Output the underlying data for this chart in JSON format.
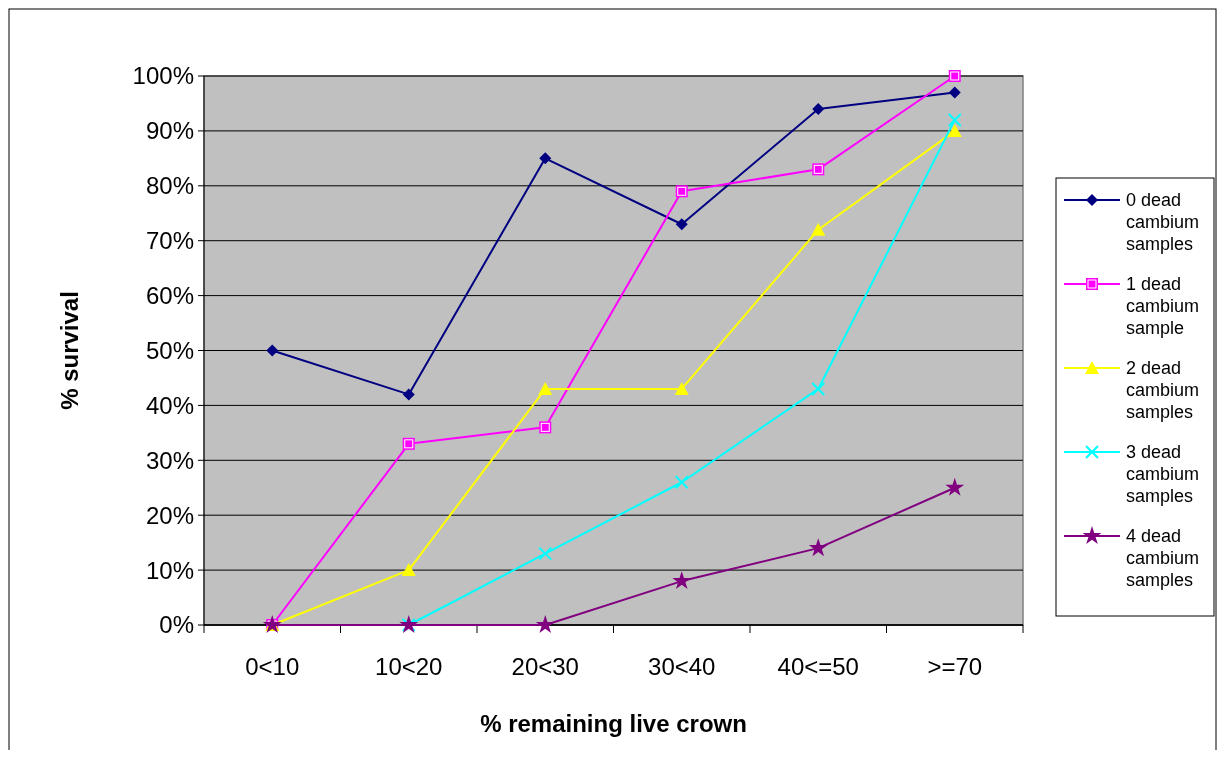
{
  "chart_data": {
    "type": "line",
    "xlabel": "% remaining live crown",
    "ylabel": "% survival",
    "categories": [
      "0<10",
      "10<20",
      "20<30",
      "30<40",
      "40<=50",
      ">=70"
    ],
    "ylim": [
      0,
      100
    ],
    "yticks": [
      {
        "value": 0,
        "label": "0%"
      },
      {
        "value": 10,
        "label": "10%"
      },
      {
        "value": 20,
        "label": "20%"
      },
      {
        "value": 30,
        "label": "30%"
      },
      {
        "value": 40,
        "label": "40%"
      },
      {
        "value": 50,
        "label": "50%"
      },
      {
        "value": 60,
        "label": "60%"
      },
      {
        "value": 70,
        "label": "70%"
      },
      {
        "value": 80,
        "label": "80%"
      },
      {
        "value": 90,
        "label": "90%"
      },
      {
        "value": 100,
        "label": "100%"
      }
    ],
    "grid": "y",
    "legend": "right",
    "series": [
      {
        "name": "0 dead cambium samples",
        "color": "#000080",
        "marker": "diamond",
        "values": [
          50,
          42,
          85,
          73,
          94,
          97
        ]
      },
      {
        "name": "1 dead cambium sample",
        "color": "#ff00ff",
        "marker": "square",
        "values": [
          0,
          33,
          36,
          79,
          83,
          100
        ]
      },
      {
        "name": "2 dead cambium samples",
        "color": "#ffff00",
        "marker": "triangle",
        "values": [
          0,
          10,
          43,
          43,
          72,
          90
        ]
      },
      {
        "name": "3 dead cambium samples",
        "color": "#00ffff",
        "marker": "cross",
        "values": [
          null,
          0,
          13,
          26,
          43,
          92
        ]
      },
      {
        "name": "4 dead cambium samples",
        "color": "#800080",
        "marker": "star",
        "values": [
          0,
          0,
          0,
          8,
          14,
          25
        ]
      }
    ]
  }
}
